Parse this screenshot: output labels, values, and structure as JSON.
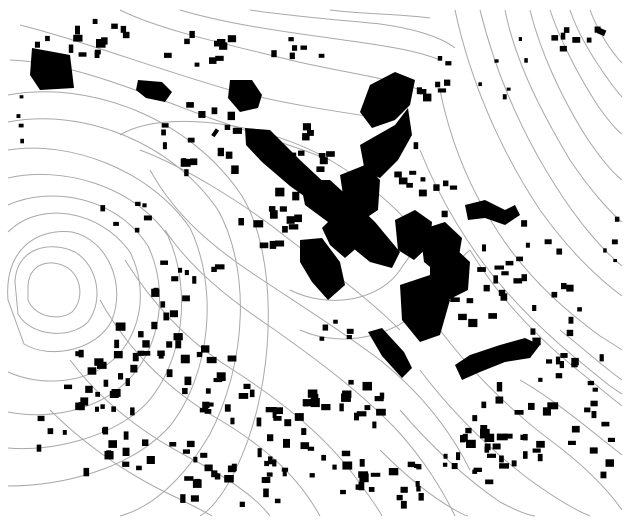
{
  "map": {
    "style": "figure-ground settlement plan",
    "colors": {
      "background": "#ffffff",
      "buildings": "#000000",
      "contours": "#a8a8a8"
    },
    "labels": []
  }
}
